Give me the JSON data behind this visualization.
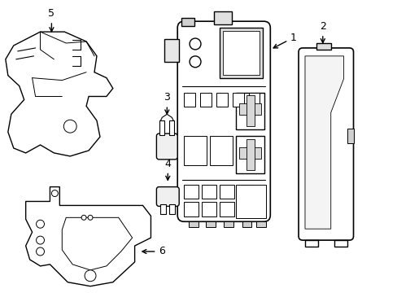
{
  "background_color": "#ffffff",
  "line_color": "#000000",
  "line_width": 1.0,
  "label_fontsize": 9,
  "figsize": [
    4.89,
    3.6
  ],
  "dpi": 100
}
